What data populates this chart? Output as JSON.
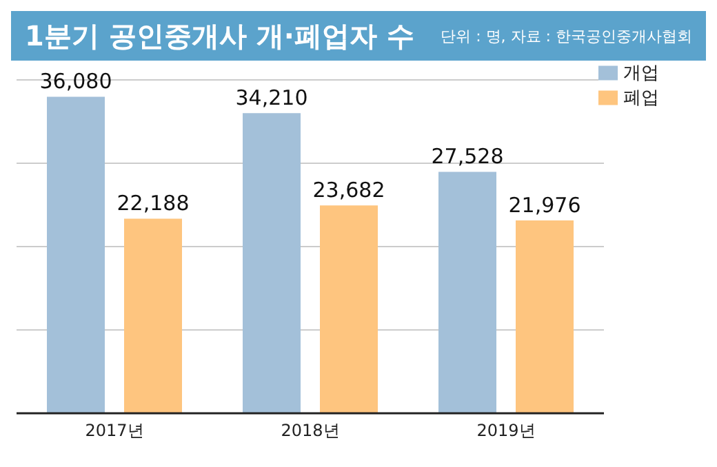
{
  "chart_data": {
    "type": "bar",
    "title": "1분기 공인중개사 개·폐업자 수",
    "subtitle": "단위 : 명, 자료 : 한국공인중개사협회",
    "categories": [
      "2017년",
      "2018년",
      "2019년"
    ],
    "series": [
      {
        "name": "개업",
        "color": "#a3c0d9",
        "values": [
          36080,
          34210,
          27528
        ],
        "value_labels": [
          "36,080",
          "34,210",
          "27,528"
        ]
      },
      {
        "name": "폐업",
        "color": "#fec57f",
        "values": [
          22188,
          23682,
          21976
        ],
        "value_labels": [
          "22,188",
          "23,682",
          "21,976"
        ]
      }
    ],
    "tick_labels": "x",
    "grid": "y",
    "legend": "top right"
  }
}
